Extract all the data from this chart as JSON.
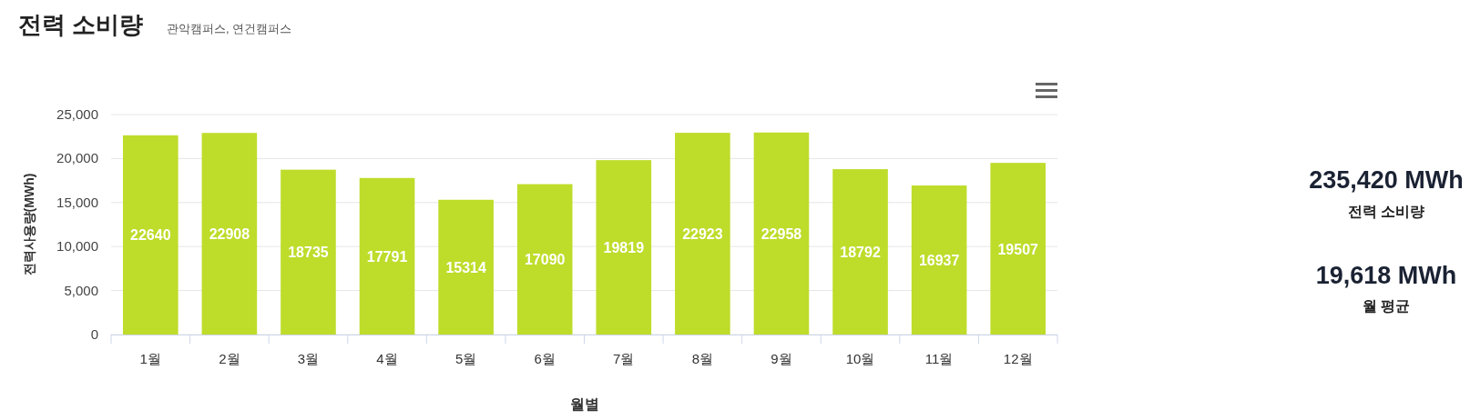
{
  "chart_data": [
    {
      "type": "bar",
      "title": "전력 소비량",
      "subtitle": "관악캠퍼스, 연건캠퍼스",
      "xlabel": "월별",
      "ylabel": "전력사용량(MWh)",
      "categories": [
        "1월",
        "2월",
        "3월",
        "4월",
        "5월",
        "6월",
        "7월",
        "8월",
        "9월",
        "10월",
        "11월",
        "12월"
      ],
      "values": [
        22640,
        22908,
        18735,
        17791,
        15314,
        17090,
        19819,
        22923,
        22958,
        18792,
        16937,
        19507
      ],
      "color": "#bedc2a",
      "ylim": [
        0,
        25000
      ],
      "yticks": [
        {
          "value": 0,
          "label": "0"
        },
        {
          "value": 5000,
          "label": "5,000"
        },
        {
          "value": 10000,
          "label": "10,000"
        },
        {
          "value": 15000,
          "label": "15,000"
        },
        {
          "value": 20000,
          "label": "20,000"
        },
        {
          "value": 25000,
          "label": "25,000"
        }
      ],
      "grid": "y",
      "data_labels": true
    },
    {
      "type": "other",
      "annotations": [
        "235,420 MWh",
        "전력 소비량",
        "19,618 MWh",
        "월 평균"
      ]
    }
  ]
}
